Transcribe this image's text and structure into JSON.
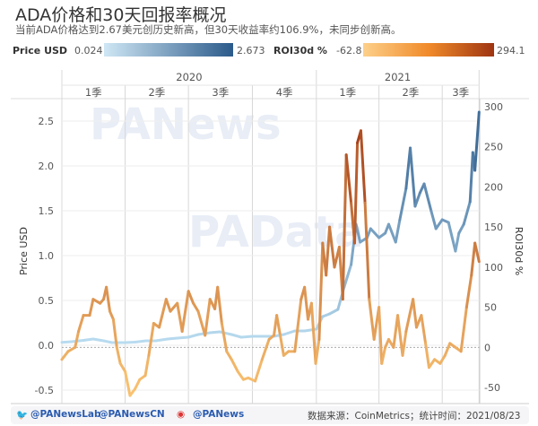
{
  "title": "ADA价格和30天回报率概况",
  "subtitle": "当前ADA价格达到2.67美元创历史新高，但30天收益率约106.9%，未同步创新高。",
  "legend": {
    "price_label": "Price USD",
    "price_min": "0.024",
    "price_max": "2.673",
    "roi_label": "ROI30d %",
    "roi_min": "-62.8",
    "roi_max": "294.1"
  },
  "colors": {
    "price_low": "#b9dcf0",
    "price_high": "#2b5a8a",
    "roi_low": "#fcc673",
    "roi_high": "#9e3512"
  },
  "watermarks": [
    "PANews",
    "PAData"
  ],
  "footer": {
    "twitter1": "@PANewsLab",
    "twitter2": "@PANewsCN",
    "weibo": "@PANews",
    "source": "数据来源：CoinMetrics；统计时间：2021/08/23"
  },
  "chart_data": {
    "type": "line",
    "years": [
      "2020",
      "2021"
    ],
    "quarters": [
      "1季",
      "2季",
      "3季",
      "4季",
      "1季",
      "2季",
      "3季"
    ],
    "ylabel": "Price USD",
    "y2label": "ROI30d %",
    "ylim": [
      -0.65,
      2.75
    ],
    "y2lim": [
      -70,
      310
    ],
    "yticks": [
      "-0.5",
      "0.0",
      "0.5",
      "1.0",
      "1.5",
      "2.0",
      "2.5"
    ],
    "y2ticks": [
      "-50",
      "0",
      "50",
      "100",
      "150",
      "200",
      "250",
      "300"
    ],
    "grid": true,
    "series": [
      {
        "name": "Price USD",
        "axis": "left",
        "points": [
          [
            "2020-01-01",
            0.033
          ],
          [
            "2020-01-15",
            0.04
          ],
          [
            "2020-02-01",
            0.055
          ],
          [
            "2020-02-15",
            0.07
          ],
          [
            "2020-03-01",
            0.05
          ],
          [
            "2020-03-13",
            0.03
          ],
          [
            "2020-04-01",
            0.03
          ],
          [
            "2020-04-15",
            0.035
          ],
          [
            "2020-05-01",
            0.05
          ],
          [
            "2020-05-15",
            0.05
          ],
          [
            "2020-06-01",
            0.07
          ],
          [
            "2020-06-15",
            0.08
          ],
          [
            "2020-07-01",
            0.09
          ],
          [
            "2020-07-15",
            0.12
          ],
          [
            "2020-08-01",
            0.14
          ],
          [
            "2020-08-15",
            0.15
          ],
          [
            "2020-09-01",
            0.12
          ],
          [
            "2020-09-15",
            0.09
          ],
          [
            "2020-10-01",
            0.1
          ],
          [
            "2020-10-15",
            0.1
          ],
          [
            "2020-11-01",
            0.1
          ],
          [
            "2020-11-15",
            0.12
          ],
          [
            "2020-12-01",
            0.16
          ],
          [
            "2020-12-15",
            0.16
          ],
          [
            "2021-01-01",
            0.18
          ],
          [
            "2021-01-10",
            0.32
          ],
          [
            "2021-01-20",
            0.35
          ],
          [
            "2021-02-01",
            0.4
          ],
          [
            "2021-02-10",
            0.65
          ],
          [
            "2021-02-20",
            0.9
          ],
          [
            "2021-02-27",
            1.35
          ],
          [
            "2021-03-05",
            1.15
          ],
          [
            "2021-03-15",
            1.2
          ],
          [
            "2021-03-20",
            1.3
          ],
          [
            "2021-04-01",
            1.2
          ],
          [
            "2021-04-10",
            1.25
          ],
          [
            "2021-04-15",
            1.35
          ],
          [
            "2021-04-25",
            1.15
          ],
          [
            "2021-05-01",
            1.4
          ],
          [
            "2021-05-10",
            1.75
          ],
          [
            "2021-05-16",
            2.2
          ],
          [
            "2021-05-23",
            1.55
          ],
          [
            "2021-05-30",
            1.7
          ],
          [
            "2021-06-05",
            1.8
          ],
          [
            "2021-06-15",
            1.5
          ],
          [
            "2021-06-22",
            1.3
          ],
          [
            "2021-07-01",
            1.4
          ],
          [
            "2021-07-10",
            1.37
          ],
          [
            "2021-07-20",
            1.05
          ],
          [
            "2021-07-25",
            1.25
          ],
          [
            "2021-08-01",
            1.35
          ],
          [
            "2021-08-10",
            1.6
          ],
          [
            "2021-08-14",
            2.15
          ],
          [
            "2021-08-17",
            1.95
          ],
          [
            "2021-08-23",
            2.6
          ]
        ]
      },
      {
        "name": "ROI30d %",
        "axis": "right",
        "points": [
          [
            "2020-01-01",
            -15
          ],
          [
            "2020-01-10",
            -5
          ],
          [
            "2020-01-20",
            0
          ],
          [
            "2020-01-25",
            20
          ],
          [
            "2020-02-01",
            40
          ],
          [
            "2020-02-10",
            40
          ],
          [
            "2020-02-15",
            60
          ],
          [
            "2020-02-25",
            55
          ],
          [
            "2020-03-01",
            60
          ],
          [
            "2020-03-05",
            75
          ],
          [
            "2020-03-10",
            45
          ],
          [
            "2020-03-15",
            35
          ],
          [
            "2020-03-20",
            0
          ],
          [
            "2020-03-25",
            -20
          ],
          [
            "2020-04-01",
            -30
          ],
          [
            "2020-04-08",
            -60
          ],
          [
            "2020-04-15",
            -52
          ],
          [
            "2020-04-22",
            -40
          ],
          [
            "2020-04-30",
            -35
          ],
          [
            "2020-05-05",
            -10
          ],
          [
            "2020-05-12",
            30
          ],
          [
            "2020-05-20",
            25
          ],
          [
            "2020-05-30",
            60
          ],
          [
            "2020-06-05",
            45
          ],
          [
            "2020-06-15",
            55
          ],
          [
            "2020-06-22",
            20
          ],
          [
            "2020-07-01",
            70
          ],
          [
            "2020-07-08",
            55
          ],
          [
            "2020-07-15",
            45
          ],
          [
            "2020-07-25",
            15
          ],
          [
            "2020-08-01",
            60
          ],
          [
            "2020-08-08",
            48
          ],
          [
            "2020-08-12",
            75
          ],
          [
            "2020-08-18",
            30
          ],
          [
            "2020-08-25",
            -5
          ],
          [
            "2020-09-01",
            -15
          ],
          [
            "2020-09-10",
            -30
          ],
          [
            "2020-09-18",
            -40
          ],
          [
            "2020-09-25",
            -38
          ],
          [
            "2020-10-05",
            -42
          ],
          [
            "2020-10-15",
            -15
          ],
          [
            "2020-10-25",
            10
          ],
          [
            "2020-11-01",
            15
          ],
          [
            "2020-11-05",
            40
          ],
          [
            "2020-11-10",
            15
          ],
          [
            "2020-11-15",
            -10
          ],
          [
            "2020-11-22",
            -5
          ],
          [
            "2020-12-01",
            -5
          ],
          [
            "2020-12-10",
            60
          ],
          [
            "2020-12-15",
            75
          ],
          [
            "2020-12-20",
            35
          ],
          [
            "2020-12-25",
            55
          ],
          [
            "2020-12-31",
            -20
          ],
          [
            "2021-01-05",
            10
          ],
          [
            "2021-01-10",
            130
          ],
          [
            "2021-01-15",
            90
          ],
          [
            "2021-01-20",
            150
          ],
          [
            "2021-01-27",
            100
          ],
          [
            "2021-02-03",
            125
          ],
          [
            "2021-02-08",
            60
          ],
          [
            "2021-02-13",
            240
          ],
          [
            "2021-02-20",
            180
          ],
          [
            "2021-02-25",
            130
          ],
          [
            "2021-03-01",
            255
          ],
          [
            "2021-03-06",
            270
          ],
          [
            "2021-03-12",
            180
          ],
          [
            "2021-03-18",
            60
          ],
          [
            "2021-03-25",
            10
          ],
          [
            "2021-04-01",
            50
          ],
          [
            "2021-04-05",
            -20
          ],
          [
            "2021-04-10",
            0
          ],
          [
            "2021-04-15",
            10
          ],
          [
            "2021-04-22",
            0
          ],
          [
            "2021-04-28",
            40
          ],
          [
            "2021-05-05",
            -10
          ],
          [
            "2021-05-10",
            20
          ],
          [
            "2021-05-20",
            60
          ],
          [
            "2021-05-25",
            25
          ],
          [
            "2021-06-01",
            40
          ],
          [
            "2021-06-07",
            5
          ],
          [
            "2021-06-12",
            -25
          ],
          [
            "2021-06-20",
            -15
          ],
          [
            "2021-06-28",
            -20
          ],
          [
            "2021-07-05",
            -10
          ],
          [
            "2021-07-12",
            5
          ],
          [
            "2021-07-20",
            0
          ],
          [
            "2021-07-28",
            -5
          ],
          [
            "2021-08-05",
            50
          ],
          [
            "2021-08-12",
            90
          ],
          [
            "2021-08-17",
            130
          ],
          [
            "2021-08-23",
            106.9
          ]
        ]
      }
    ]
  }
}
